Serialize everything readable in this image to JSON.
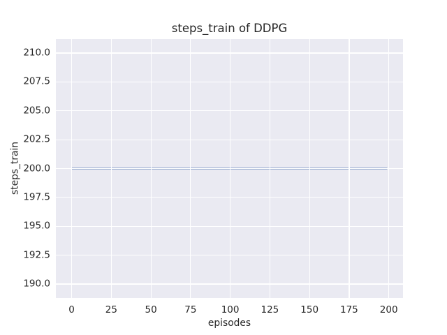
{
  "chart_data": {
    "type": "line",
    "title": "steps_train of DDPG",
    "xlabel": "episodes",
    "ylabel": "steps_train",
    "xlim": [
      -9.95,
      208.95
    ],
    "ylim": [
      188.79,
      211.21
    ],
    "xticks": [
      0,
      25,
      50,
      75,
      100,
      125,
      150,
      175,
      200
    ],
    "xtick_labels": [
      "0",
      "25",
      "50",
      "75",
      "100",
      "125",
      "150",
      "175",
      "200"
    ],
    "yticks": [
      190.0,
      192.5,
      195.0,
      197.5,
      200.0,
      202.5,
      205.0,
      207.5,
      210.0
    ],
    "ytick_labels": [
      "190.0",
      "192.5",
      "195.0",
      "197.5",
      "200.0",
      "202.5",
      "205.0",
      "207.5",
      "210.0"
    ],
    "grid": true,
    "legend": null,
    "series": [
      {
        "name": "steps_train",
        "x_range": [
          0,
          199
        ],
        "y_constant": 200,
        "color": "#4c72b0",
        "line_width": 2.1
      }
    ],
    "style": {
      "figure_background": "#ffffff",
      "axes_background": "#eaeaf2",
      "grid_color": "#ffffff",
      "text_color": "#262626"
    }
  }
}
